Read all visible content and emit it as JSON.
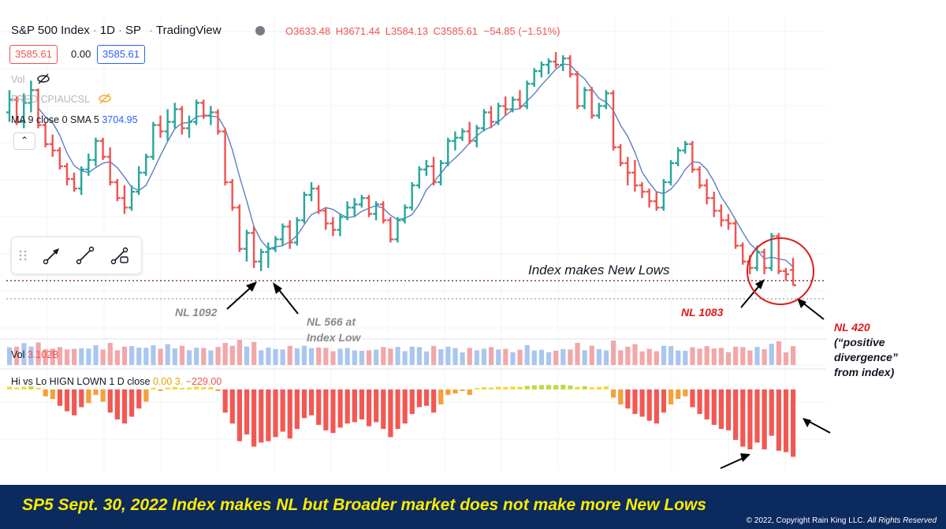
{
  "header": {
    "symbol": "S&P 500 Index",
    "interval": "1D",
    "exchange": "SP",
    "source": "TradingView",
    "ohlc": {
      "o_label": "O",
      "o": "3633.48",
      "h_label": "H",
      "h": "3671.44",
      "l_label": "L",
      "l": "3584.13",
      "c_label": "C",
      "c": "3585.61",
      "change": "−54.85 (−1.51%)"
    }
  },
  "price_boxes": {
    "bid": "3585.61",
    "spread": "0.00",
    "ask": "3585.61"
  },
  "indicators": {
    "vol_label": "Vol",
    "fred_label": "FRED:CPIAUCSL",
    "ma_label": "MA 9 close 0 SMA 5",
    "ma_value": "3704.95",
    "volume_label": "Vol",
    "volume_value": "3.102B",
    "hilo_label": "Hi vs Lo",
    "hilo_params": "HIGN LOWN 1 D close",
    "hilo_v1": "0.00",
    "hilo_v2": "3.",
    "hilo_v3": "−229.00"
  },
  "annotations": {
    "index_new_lows": "Index makes New Lows",
    "nl1092": "NL 1092",
    "nl566_line1": "NL 566 at",
    "nl566_line2": "Index Low",
    "nl1083": "NL 1083",
    "nl420_line1": "NL 420",
    "nl420_line2": "(“positive",
    "nl420_line3": "divergence”",
    "nl420_line4": "from index)"
  },
  "footer": {
    "title": "SP5 Sept. 30, 2022  Index makes NL but Broader market does not make more New Lows",
    "copyright": "© 2022, Copyright Rain King LLC.",
    "rights": "All Rights Reserved"
  },
  "colors": {
    "up": "#26a69a",
    "down": "#ef5350",
    "ma": "#5b7ec2",
    "vol_up": "#a9c6f0",
    "vol_down": "#f2a7a8",
    "circle": "#e0191b",
    "footer_bg": "#0b2a5e",
    "footer_text": "#ffeb00"
  },
  "chart_data": {
    "type": "ohlc",
    "title": "S&P 500 Index · 1D · SP",
    "last_close": 3585.61,
    "series": [
      {
        "name": "S&P 500 Index",
        "type": "ohlc-bars",
        "bars": [
          [
            4130,
            4200,
            4100,
            4170
          ],
          [
            4170,
            4180,
            4090,
            4100
          ],
          [
            4100,
            4190,
            4080,
            4160
          ],
          [
            4160,
            4230,
            4130,
            4200
          ],
          [
            4200,
            4205,
            4080,
            4090
          ],
          [
            4090,
            4100,
            4020,
            4030
          ],
          [
            4030,
            4060,
            3990,
            4010
          ],
          [
            4010,
            4020,
            3950,
            3960
          ],
          [
            3960,
            3970,
            3900,
            3920
          ],
          [
            3920,
            3940,
            3880,
            3890
          ],
          [
            3890,
            3960,
            3870,
            3950
          ],
          [
            3950,
            4000,
            3930,
            3980
          ],
          [
            3980,
            4050,
            3960,
            4040
          ],
          [
            4040,
            4050,
            3980,
            3990
          ],
          [
            3990,
            4020,
            3900,
            3910
          ],
          [
            3910,
            3920,
            3850,
            3860
          ],
          [
            3860,
            3900,
            3810,
            3830
          ],
          [
            3830,
            3900,
            3820,
            3880
          ],
          [
            3880,
            3960,
            3870,
            3940
          ],
          [
            3940,
            4000,
            3930,
            3990
          ],
          [
            3990,
            4100,
            3980,
            4090
          ],
          [
            4090,
            4120,
            4050,
            4070
          ],
          [
            4070,
            4140,
            4040,
            4100
          ],
          [
            4100,
            4160,
            4080,
            4140
          ],
          [
            4140,
            4150,
            4060,
            4080
          ],
          [
            4080,
            4120,
            4050,
            4100
          ],
          [
            4100,
            4170,
            4090,
            4160
          ],
          [
            4160,
            4170,
            4110,
            4120
          ],
          [
            4120,
            4150,
            4090,
            4130
          ],
          [
            4130,
            4140,
            4060,
            4070
          ],
          [
            4070,
            4080,
            3900,
            3910
          ],
          [
            3910,
            3920,
            3820,
            3830
          ],
          [
            3830,
            3840,
            3690,
            3700
          ],
          [
            3700,
            3760,
            3660,
            3750
          ],
          [
            3750,
            3770,
            3640,
            3660
          ],
          [
            3660,
            3700,
            3630,
            3690
          ],
          [
            3690,
            3720,
            3640,
            3700
          ],
          [
            3700,
            3740,
            3690,
            3730
          ],
          [
            3730,
            3780,
            3710,
            3770
          ],
          [
            3770,
            3790,
            3700,
            3720
          ],
          [
            3720,
            3800,
            3710,
            3790
          ],
          [
            3790,
            3880,
            3780,
            3870
          ],
          [
            3870,
            3910,
            3850,
            3890
          ],
          [
            3890,
            3900,
            3810,
            3820
          ],
          [
            3820,
            3830,
            3760,
            3780
          ],
          [
            3780,
            3800,
            3740,
            3760
          ],
          [
            3760,
            3810,
            3740,
            3800
          ],
          [
            3800,
            3850,
            3790,
            3830
          ],
          [
            3830,
            3860,
            3800,
            3840
          ],
          [
            3840,
            3870,
            3830,
            3860
          ],
          [
            3860,
            3870,
            3800,
            3810
          ],
          [
            3810,
            3850,
            3790,
            3840
          ],
          [
            3840,
            3850,
            3780,
            3790
          ],
          [
            3790,
            3800,
            3720,
            3730
          ],
          [
            3730,
            3800,
            3720,
            3790
          ],
          [
            3790,
            3840,
            3780,
            3830
          ],
          [
            3830,
            3910,
            3820,
            3900
          ],
          [
            3900,
            3960,
            3890,
            3950
          ],
          [
            3950,
            3980,
            3930,
            3960
          ],
          [
            3960,
            3990,
            3900,
            3910
          ],
          [
            3910,
            3980,
            3900,
            3970
          ],
          [
            3970,
            4050,
            3960,
            4040
          ],
          [
            4040,
            4070,
            4010,
            4050
          ],
          [
            4050,
            4080,
            4040,
            4070
          ],
          [
            4070,
            4100,
            4030,
            4040
          ],
          [
            4040,
            4090,
            4020,
            4080
          ],
          [
            4080,
            4140,
            4070,
            4130
          ],
          [
            4130,
            4150,
            4080,
            4100
          ],
          [
            4100,
            4160,
            4090,
            4150
          ],
          [
            4150,
            4180,
            4120,
            4140
          ],
          [
            4140,
            4180,
            4130,
            4170
          ],
          [
            4170,
            4200,
            4140,
            4150
          ],
          [
            4150,
            4230,
            4140,
            4220
          ],
          [
            4220,
            4270,
            4210,
            4260
          ],
          [
            4260,
            4290,
            4240,
            4280
          ],
          [
            4280,
            4300,
            4250,
            4290
          ],
          [
            4290,
            4320,
            4270,
            4280
          ],
          [
            4280,
            4310,
            4260,
            4300
          ],
          [
            4300,
            4310,
            4240,
            4250
          ],
          [
            4250,
            4260,
            4140,
            4150
          ],
          [
            4150,
            4210,
            4140,
            4200
          ],
          [
            4200,
            4210,
            4110,
            4120
          ],
          [
            4120,
            4160,
            4110,
            4150
          ],
          [
            4150,
            4200,
            4140,
            4190
          ],
          [
            4190,
            4200,
            4010,
            4020
          ],
          [
            4020,
            4030,
            3960,
            3970
          ],
          [
            3970,
            3990,
            3900,
            3940
          ],
          [
            3940,
            3980,
            3880,
            3900
          ],
          [
            3900,
            3910,
            3860,
            3880
          ],
          [
            3880,
            3890,
            3830,
            3850
          ],
          [
            3850,
            3880,
            3820,
            3830
          ],
          [
            3830,
            3920,
            3820,
            3910
          ],
          [
            3910,
            3980,
            3900,
            3970
          ],
          [
            3970,
            4020,
            3960,
            4010
          ],
          [
            4010,
            4040,
            4000,
            4030
          ],
          [
            4030,
            4040,
            3940,
            3950
          ],
          [
            3950,
            3960,
            3890,
            3900
          ],
          [
            3900,
            3920,
            3840,
            3860
          ],
          [
            3860,
            3880,
            3800,
            3820
          ],
          [
            3820,
            3840,
            3770,
            3790
          ],
          [
            3790,
            3810,
            3760,
            3780
          ],
          [
            3780,
            3790,
            3700,
            3710
          ],
          [
            3710,
            3720,
            3650,
            3660
          ],
          [
            3660,
            3680,
            3620,
            3640
          ],
          [
            3640,
            3710,
            3630,
            3690
          ],
          [
            3690,
            3700,
            3620,
            3640
          ],
          [
            3640,
            3750,
            3630,
            3740
          ],
          [
            3740,
            3750,
            3620,
            3630
          ],
          [
            3630,
            3640,
            3600,
            3620
          ],
          [
            3633.48,
            3671.44,
            3584.13,
            3585.61
          ]
        ]
      },
      {
        "name": "MA 9 close 0 SMA 5",
        "type": "line",
        "value_last": 3704.95
      }
    ],
    "volume": {
      "name": "Vol",
      "last": "3.102B"
    },
    "hilo": {
      "name": "Hi vs Lo",
      "last": -229.0
    },
    "reference_lines": [
      {
        "label": "Index makes New Lows",
        "style": "dotted",
        "color": "#5d1616"
      }
    ],
    "grid": true
  }
}
